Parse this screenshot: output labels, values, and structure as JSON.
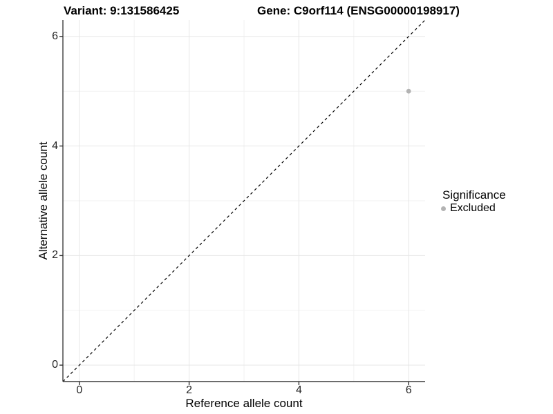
{
  "figure": {
    "title_left": "Variant: 9:131586425",
    "title_right": "Gene: C9orf114 (ENSG00000198917)"
  },
  "chart_data": {
    "type": "scatter",
    "title": "Variant: 9:131586425 | Gene: C9orf114 (ENSG00000198917)",
    "xlabel": "Reference allele count",
    "ylabel": "Alternative allele count",
    "xlim": [
      -0.3,
      6.3
    ],
    "ylim": [
      -0.3,
      6.3
    ],
    "x_ticks": [
      0,
      2,
      4,
      6
    ],
    "y_ticks": [
      0,
      2,
      4,
      6
    ],
    "x_tick_labels": [
      "0",
      "2",
      "4",
      "6"
    ],
    "y_tick_labels": [
      "0",
      "2",
      "4",
      "6"
    ],
    "x_minor_ticks": [
      1,
      3,
      5
    ],
    "y_minor_ticks": [
      1,
      3,
      5
    ],
    "grid": true,
    "series": [
      {
        "name": "Excluded",
        "color": "#b3b3b3",
        "points": [
          {
            "x": 6,
            "y": 5
          }
        ]
      }
    ],
    "reference_line": {
      "type": "identity",
      "slope": 1,
      "intercept": 0,
      "style": "dashed",
      "color": "#000000"
    },
    "legend": {
      "title": "Significance",
      "position": "right",
      "entries": [
        {
          "label": "Excluded",
          "color": "#b3b3b3"
        }
      ]
    }
  },
  "colors": {
    "background": "#ffffff",
    "grid_major": "#e6e6e6",
    "grid_minor": "#f2f2f2",
    "axis_line": "#3c3c3c",
    "tick_mark": "#333333",
    "point": "#b3b3b3"
  }
}
